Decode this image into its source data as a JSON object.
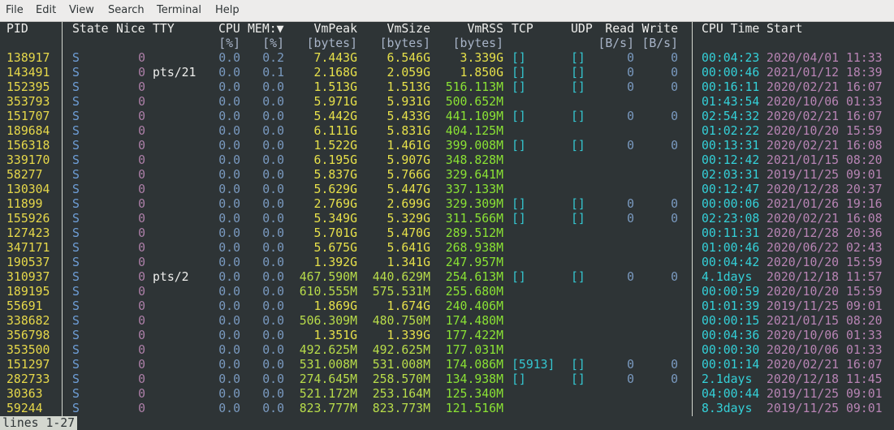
{
  "menu": [
    "File",
    "Edit",
    "View",
    "Search",
    "Terminal",
    "Help"
  ],
  "header": {
    "pid": "PID",
    "state": "State",
    "nice": "Nice",
    "tty": "TTY",
    "cpu": "CPU",
    "mem": "MEM:▼",
    "vmpeak": "VmPeak",
    "vmsize": "VmSize",
    "vmrss": "VmRSS",
    "tcp": "TCP",
    "udp": "UDP",
    "read": "Read",
    "write": "Write",
    "cputime": "CPU Time",
    "start": "Start"
  },
  "units": {
    "cpu": "[%]",
    "mem": "[%]",
    "vmpeak": "[bytes]",
    "vmsize": "[bytes]",
    "vmrss": "[bytes]",
    "read": "[B/s]",
    "write": "[B/s]"
  },
  "rows": [
    {
      "pid": "138917",
      "state": "S",
      "nice": "0",
      "cpu": "0.0",
      "mem": "0.2",
      "vmpeak": "7.443G",
      "vmsize": "6.546G",
      "vmrss": "3.339G",
      "tcp": "[]",
      "udp": "[]",
      "read": "0",
      "write": "0",
      "cputime": "00:04:23",
      "start": "2020/04/01 11:33"
    },
    {
      "pid": "143491",
      "state": "S",
      "nice": "0",
      "tty": "pts/21",
      "cpu": "0.0",
      "mem": "0.1",
      "vmpeak": "2.168G",
      "vmsize": "2.059G",
      "vmrss": "1.850G",
      "tcp": "[]",
      "udp": "[]",
      "read": "0",
      "write": "0",
      "cputime": "00:00:46",
      "start": "2021/01/12 18:39"
    },
    {
      "pid": "152395",
      "state": "S",
      "nice": "0",
      "cpu": "0.0",
      "mem": "0.0",
      "vmpeak": "1.513G",
      "vmsize": "1.513G",
      "vmrss": "516.113M",
      "tcp": "[]",
      "udp": "[]",
      "read": "0",
      "write": "0",
      "cputime": "00:16:11",
      "start": "2020/02/21 16:07"
    },
    {
      "pid": "353793",
      "state": "S",
      "nice": "0",
      "cpu": "0.0",
      "mem": "0.0",
      "vmpeak": "5.971G",
      "vmsize": "5.931G",
      "vmrss": "500.652M",
      "cputime": "01:43:54",
      "start": "2020/10/06 01:33"
    },
    {
      "pid": "151707",
      "state": "S",
      "nice": "0",
      "cpu": "0.0",
      "mem": "0.0",
      "vmpeak": "5.442G",
      "vmsize": "5.433G",
      "vmrss": "441.109M",
      "tcp": "[]",
      "udp": "[]",
      "read": "0",
      "write": "0",
      "cputime": "02:54:32",
      "start": "2020/02/21 16:07"
    },
    {
      "pid": "189684",
      "state": "S",
      "nice": "0",
      "cpu": "0.0",
      "mem": "0.0",
      "vmpeak": "6.111G",
      "vmsize": "5.831G",
      "vmrss": "404.125M",
      "cputime": "01:02:22",
      "start": "2020/10/20 15:59"
    },
    {
      "pid": "156318",
      "state": "S",
      "nice": "0",
      "cpu": "0.0",
      "mem": "0.0",
      "vmpeak": "1.522G",
      "vmsize": "1.461G",
      "vmrss": "399.008M",
      "tcp": "[]",
      "udp": "[]",
      "read": "0",
      "write": "0",
      "cputime": "00:13:31",
      "start": "2020/02/21 16:08"
    },
    {
      "pid": "339170",
      "state": "S",
      "nice": "0",
      "cpu": "0.0",
      "mem": "0.0",
      "vmpeak": "6.195G",
      "vmsize": "5.907G",
      "vmrss": "348.828M",
      "cputime": "00:12:42",
      "start": "2021/01/15 08:20"
    },
    {
      "pid": "58277",
      "state": "S",
      "nice": "0",
      "cpu": "0.0",
      "mem": "0.0",
      "vmpeak": "5.837G",
      "vmsize": "5.766G",
      "vmrss": "329.641M",
      "cputime": "02:03:31",
      "start": "2019/11/25 09:01"
    },
    {
      "pid": "130304",
      "state": "S",
      "nice": "0",
      "cpu": "0.0",
      "mem": "0.0",
      "vmpeak": "5.629G",
      "vmsize": "5.447G",
      "vmrss": "337.133M",
      "cputime": "00:12:47",
      "start": "2020/12/28 20:37"
    },
    {
      "pid": "11899",
      "state": "S",
      "nice": "0",
      "cpu": "0.0",
      "mem": "0.0",
      "vmpeak": "2.769G",
      "vmsize": "2.699G",
      "vmrss": "329.309M",
      "tcp": "[]",
      "udp": "[]",
      "read": "0",
      "write": "0",
      "cputime": "00:00:06",
      "start": "2021/01/26 19:16"
    },
    {
      "pid": "155926",
      "state": "S",
      "nice": "0",
      "cpu": "0.0",
      "mem": "0.0",
      "vmpeak": "5.349G",
      "vmsize": "5.329G",
      "vmrss": "311.566M",
      "tcp": "[]",
      "udp": "[]",
      "read": "0",
      "write": "0",
      "cputime": "02:23:08",
      "start": "2020/02/21 16:08"
    },
    {
      "pid": "127423",
      "state": "S",
      "nice": "0",
      "cpu": "0.0",
      "mem": "0.0",
      "vmpeak": "5.701G",
      "vmsize": "5.470G",
      "vmrss": "289.512M",
      "cputime": "00:11:31",
      "start": "2020/12/28 20:36"
    },
    {
      "pid": "347171",
      "state": "S",
      "nice": "0",
      "cpu": "0.0",
      "mem": "0.0",
      "vmpeak": "5.675G",
      "vmsize": "5.641G",
      "vmrss": "268.938M",
      "cputime": "01:00:46",
      "start": "2020/06/22 02:43"
    },
    {
      "pid": "190537",
      "state": "S",
      "nice": "0",
      "cpu": "0.0",
      "mem": "0.0",
      "vmpeak": "1.392G",
      "vmsize": "1.341G",
      "vmrss": "247.957M",
      "cputime": "00:04:42",
      "start": "2020/10/20 15:59"
    },
    {
      "pid": "310937",
      "state": "S",
      "nice": "0",
      "tty": "pts/2",
      "cpu": "0.0",
      "mem": "0.0",
      "vmpeak": "467.590M",
      "vmsize": "440.629M",
      "vmrss": "254.613M",
      "tcp": "[]",
      "udp": "[]",
      "read": "0",
      "write": "0",
      "cputime": "4.1days",
      "start": "2020/12/18 11:57"
    },
    {
      "pid": "189195",
      "state": "S",
      "nice": "0",
      "cpu": "0.0",
      "mem": "0.0",
      "vmpeak": "610.555M",
      "vmsize": "575.531M",
      "vmrss": "255.680M",
      "cputime": "00:00:59",
      "start": "2020/10/20 15:59"
    },
    {
      "pid": "55691",
      "state": "S",
      "nice": "0",
      "cpu": "0.0",
      "mem": "0.0",
      "vmpeak": "1.869G",
      "vmsize": "1.674G",
      "vmrss": "240.406M",
      "cputime": "01:01:39",
      "start": "2019/11/25 09:01"
    },
    {
      "pid": "338682",
      "state": "S",
      "nice": "0",
      "cpu": "0.0",
      "mem": "0.0",
      "vmpeak": "506.309M",
      "vmsize": "480.750M",
      "vmrss": "174.480M",
      "cputime": "00:00:15",
      "start": "2021/01/15 08:20"
    },
    {
      "pid": "356798",
      "state": "S",
      "nice": "0",
      "cpu": "0.0",
      "mem": "0.0",
      "vmpeak": "1.351G",
      "vmsize": "1.339G",
      "vmrss": "177.422M",
      "cputime": "00:04:36",
      "start": "2020/10/06 01:33"
    },
    {
      "pid": "353500",
      "state": "S",
      "nice": "0",
      "cpu": "0.0",
      "mem": "0.0",
      "vmpeak": "492.625M",
      "vmsize": "492.625M",
      "vmrss": "177.031M",
      "cputime": "00:00:30",
      "start": "2020/10/06 01:33"
    },
    {
      "pid": "151297",
      "state": "S",
      "nice": "0",
      "cpu": "0.0",
      "mem": "0.0",
      "vmpeak": "531.008M",
      "vmsize": "531.008M",
      "vmrss": "174.086M",
      "tcp": "[5913]",
      "udp": "[]",
      "read": "0",
      "write": "0",
      "cputime": "00:01:14",
      "start": "2020/02/21 16:07"
    },
    {
      "pid": "282733",
      "state": "S",
      "nice": "0",
      "cpu": "0.0",
      "mem": "0.0",
      "vmpeak": "274.645M",
      "vmsize": "258.570M",
      "vmrss": "134.938M",
      "tcp": "[]",
      "udp": "[]",
      "read": "0",
      "write": "0",
      "cputime": "2.1days",
      "start": "2020/12/18 11:45"
    },
    {
      "pid": "30363",
      "state": "S",
      "nice": "0",
      "cpu": "0.0",
      "mem": "0.0",
      "vmpeak": "521.172M",
      "vmsize": "253.164M",
      "vmrss": "125.340M",
      "cputime": "04:00:44",
      "start": "2019/11/25 09:01"
    },
    {
      "pid": "59244",
      "state": "S",
      "nice": "0",
      "cpu": "0.0",
      "mem": "0.0",
      "vmpeak": "823.777M",
      "vmsize": "823.773M",
      "vmrss": "121.516M",
      "cputime": "8.3days",
      "start": "2019/11/25 09:01"
    }
  ],
  "status": "lines 1-27"
}
